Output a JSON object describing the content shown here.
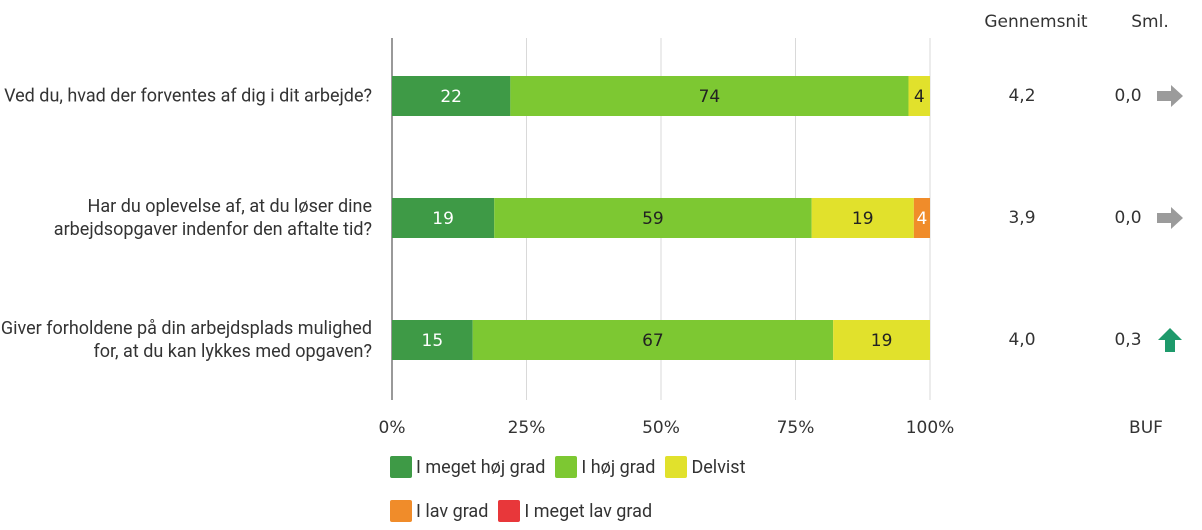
{
  "chart_data": {
    "type": "stacked-barh",
    "categories": [
      "Ved du, hvad der forventes af dig i dit arbejde?",
      "Har du oplevelse af, at du løser dine arbejdsopgaver indenfor den aftalte tid?",
      "Giver forholdene på din arbejdsplads mulighed for, at du kan lykkes med opgaven?"
    ],
    "series": [
      {
        "name": "I meget høj grad",
        "color": "#3e9a46",
        "label_color": "#ffffff",
        "values": [
          22,
          19,
          15
        ]
      },
      {
        "name": "I høj grad",
        "color": "#7dc832",
        "label_color": "#222222",
        "values": [
          74,
          59,
          67
        ]
      },
      {
        "name": "Delvist",
        "color": "#e1e12c",
        "label_color": "#222222",
        "values": [
          4,
          19,
          19
        ]
      },
      {
        "name": "I lav grad",
        "color": "#f08c2a",
        "label_color": "#ffffff",
        "values": [
          null,
          4,
          null
        ]
      },
      {
        "name": "I meget lav grad",
        "color": "#e8373a",
        "label_color": "#ffffff",
        "values": [
          null,
          null,
          null
        ]
      }
    ],
    "xlim": [
      0,
      100
    ],
    "xticks": [
      {
        "value": 0,
        "label": "0%"
      },
      {
        "value": 25,
        "label": "25%"
      },
      {
        "value": 50,
        "label": "50%"
      },
      {
        "value": 75,
        "label": "75%"
      },
      {
        "value": 100,
        "label": "100%"
      }
    ],
    "grid": true,
    "averages": {
      "header": "Gennemsnit",
      "values": [
        4.2,
        3.9,
        4.0
      ],
      "value_labels": [
        "4,2",
        "3,9",
        "4,0"
      ]
    },
    "comparison": {
      "header": "Sml.",
      "footer": "BUF",
      "values": [
        0.0,
        0.0,
        0.3
      ],
      "value_labels": [
        "0,0",
        "0,0",
        "0,3"
      ],
      "trends": [
        "flat",
        "flat",
        "up"
      ]
    }
  }
}
